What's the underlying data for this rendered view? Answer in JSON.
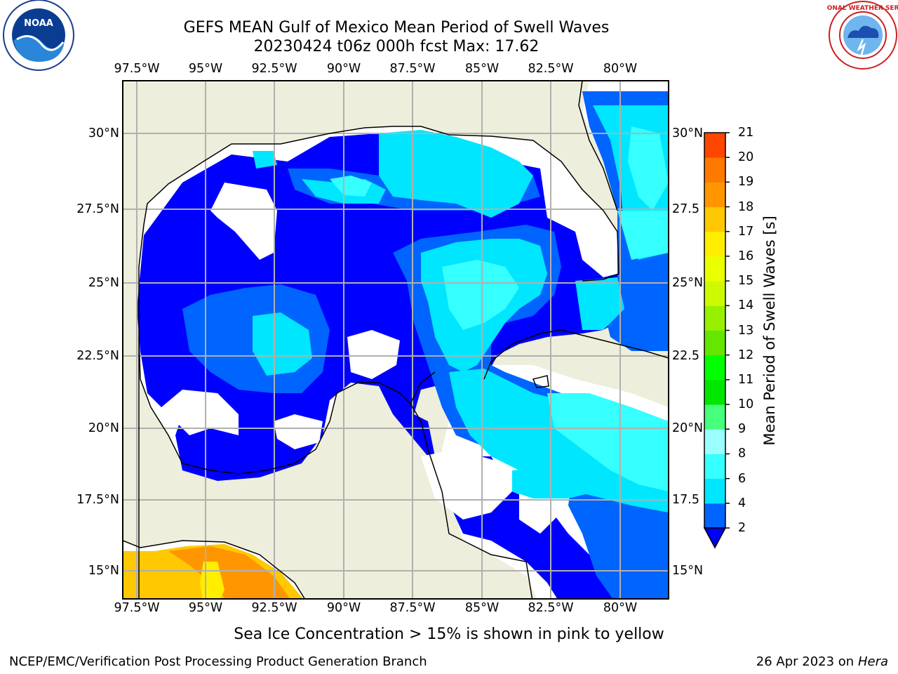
{
  "header": {
    "title": "GEFS MEAN Gulf of Mexico Mean Period of Swell Waves",
    "subtitle": "20230424 t06z 000h fcst   Max: 17.62"
  },
  "logos": {
    "left": {
      "name": "noaa-logo",
      "text": "NOAA"
    },
    "right": {
      "name": "national-weather-service-logo",
      "text": "NATIONAL WEATHER SERVICE"
    }
  },
  "map": {
    "longitude_labels": [
      "97.5°W",
      "95°W",
      "92.5°W",
      "90°W",
      "87.5°W",
      "85°W",
      "82.5°W",
      "80°W"
    ],
    "latitude_labels": [
      "30°N",
      "27.5°N",
      "25°N",
      "22.5°N",
      "20°N",
      "17.5°N",
      "15°N"
    ],
    "right_latitude_labels": [
      "30°N",
      "27.5",
      "25°N",
      "22.5",
      "20°N",
      "17.5",
      "15°N"
    ],
    "gridlines": true,
    "colors": {
      "land": "#eeeedc",
      "no_data": "#ffffff",
      "coastline": "#000000",
      "grid": "#b0b0b0"
    }
  },
  "colorbar": {
    "label": "Mean Period of Swell Waves [s]",
    "ticks": [
      "2",
      "4",
      "6",
      "8",
      "9",
      "10",
      "11",
      "12",
      "13",
      "14",
      "15",
      "16",
      "17",
      "18",
      "19",
      "20",
      "21"
    ],
    "colors": [
      "#0064ff",
      "#00e6ff",
      "#36ffff",
      "#9cffff",
      "#46ff7c",
      "#00e600",
      "#00ff00",
      "#64e600",
      "#96f000",
      "#cdfa00",
      "#eaff00",
      "#ffee00",
      "#ffc800",
      "#ff9600",
      "#ff7800",
      "#ff4600",
      "#ff2800",
      "#ff0000"
    ],
    "under_color": "#0000ff"
  },
  "note": "Sea Ice Concentration > 15% is shown in pink to yellow",
  "footer": {
    "left": "NCEP/EMC/Verification Post Processing Product Generation Branch",
    "date": "26 Apr 2023 on ",
    "host": "Hera"
  }
}
